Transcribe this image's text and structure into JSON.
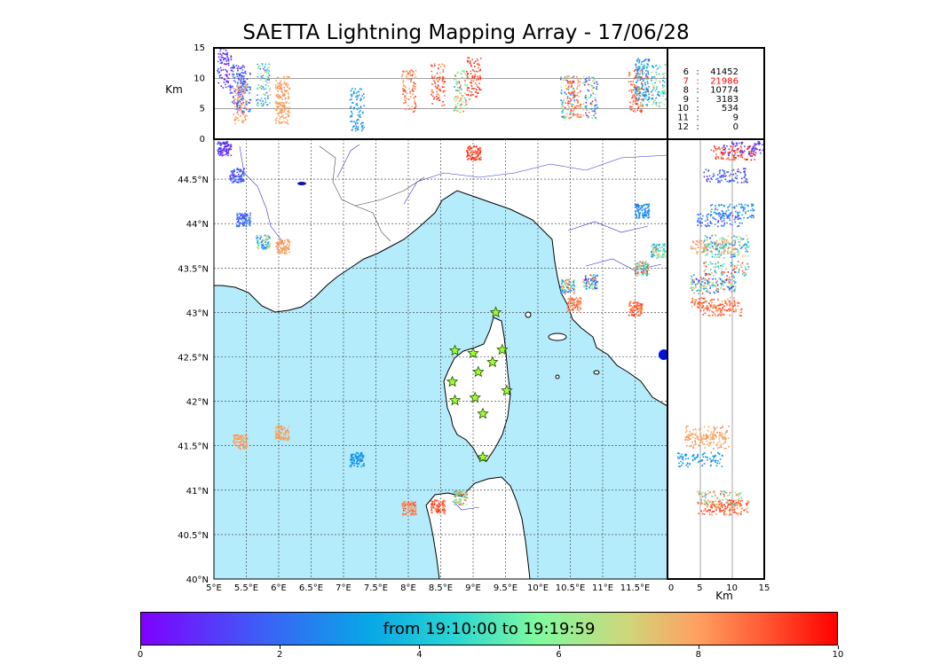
{
  "title": "SAETTA Lightning Mapping Array - 17/06/28",
  "map": {
    "lon_range": [
      5,
      12.0
    ],
    "lat_range": [
      40,
      44.95
    ],
    "lon_ticks": [
      "5°E",
      "5.5°E",
      "6°E",
      "6.5°E",
      "7°E",
      "7.5°E",
      "8°E",
      "8.5°E",
      "9°E",
      "9.5°E",
      "10°E",
      "10.5°E",
      "11°E",
      "11.5°E"
    ],
    "lat_ticks": [
      "40°N",
      "40.5°N",
      "41°N",
      "41.5°N",
      "42°N",
      "42.5°N",
      "43°N",
      "43.5°N",
      "44°N",
      "44.5°N"
    ],
    "sea_color": "#b4ecfc",
    "land_color": "#ffffff",
    "stations": [
      {
        "lon": 9.35,
        "lat": 43.0
      },
      {
        "lon": 8.72,
        "lat": 42.57
      },
      {
        "lon": 9.0,
        "lat": 42.54
      },
      {
        "lon": 9.45,
        "lat": 42.58
      },
      {
        "lon": 9.3,
        "lat": 42.44
      },
      {
        "lon": 9.08,
        "lat": 42.33
      },
      {
        "lon": 8.68,
        "lat": 42.22
      },
      {
        "lon": 9.52,
        "lat": 42.12
      },
      {
        "lon": 8.72,
        "lat": 42.01
      },
      {
        "lon": 9.03,
        "lat": 42.04
      },
      {
        "lon": 9.15,
        "lat": 41.86
      },
      {
        "lon": 9.15,
        "lat": 41.37
      }
    ]
  },
  "altitude_panel": {
    "ylabel": "Km",
    "yticks": [
      "0",
      "5",
      "10",
      "15"
    ],
    "y_range": [
      0,
      15
    ]
  },
  "side_panel": {
    "xlabel": "Km",
    "xticks": [
      "0",
      "5",
      "10",
      "15"
    ],
    "x_range": [
      0,
      15
    ]
  },
  "stats": [
    {
      "stations": "6",
      "sep": ":",
      "count": "41452",
      "color": "#000000"
    },
    {
      "stations": "7",
      "sep": ":",
      "count": "21986",
      "color": "#ff0000"
    },
    {
      "stations": "8",
      "sep": ":",
      "count": "10774",
      "color": "#000000"
    },
    {
      "stations": "9",
      "sep": ":",
      "count": "3183",
      "color": "#000000"
    },
    {
      "stations": "10",
      "sep": ":",
      "count": "534",
      "color": "#000000"
    },
    {
      "stations": "11",
      "sep": ":",
      "count": "9",
      "color": "#000000"
    },
    {
      "stations": "12",
      "sep": ":",
      "count": "0",
      "color": "#000000"
    }
  ],
  "colorbar": {
    "label": "from 19:10:00 to 19:19:59",
    "ticks": [
      "0",
      "2",
      "4",
      "6",
      "8",
      "10"
    ],
    "range": [
      0,
      10
    ]
  },
  "clusters": [
    {
      "lon": 5.15,
      "lat": 44.85,
      "alt": 12,
      "tmin": 0.0,
      "tmax": 1.8
    },
    {
      "lon": 5.35,
      "lat": 44.55,
      "alt": 9,
      "tmin": 0.5,
      "tmax": 2.5
    },
    {
      "lon": 5.45,
      "lat": 44.05,
      "alt": 8,
      "tmin": 0.8,
      "tmax": 3.0
    },
    {
      "lon": 5.75,
      "lat": 43.8,
      "alt": 9,
      "tmin": 1.5,
      "tmax": 8.0
    },
    {
      "lon": 6.05,
      "lat": 43.75,
      "alt": 7,
      "tmin": 7.5,
      "tmax": 8.5
    },
    {
      "lon": 7.2,
      "lat": 41.35,
      "alt": 5,
      "tmin": 2.2,
      "tmax": 3.5
    },
    {
      "lon": 8.0,
      "lat": 40.8,
      "alt": 8,
      "tmin": 7.5,
      "tmax": 9.5
    },
    {
      "lon": 8.45,
      "lat": 40.82,
      "alt": 9,
      "tmin": 7.8,
      "tmax": 9.8
    },
    {
      "lon": 8.8,
      "lat": 40.92,
      "alt": 8,
      "tmin": 4.0,
      "tmax": 9.5
    },
    {
      "lon": 9.0,
      "lat": 44.8,
      "alt": 10,
      "tmin": 8.5,
      "tmax": 9.8
    },
    {
      "lon": 10.45,
      "lat": 43.3,
      "alt": 7,
      "tmin": 1.0,
      "tmax": 9.5
    },
    {
      "lon": 10.8,
      "lat": 43.35,
      "alt": 7,
      "tmin": 0.5,
      "tmax": 9.8
    },
    {
      "lon": 10.55,
      "lat": 43.1,
      "alt": 7,
      "tmin": 7.5,
      "tmax": 9.5
    },
    {
      "lon": 11.5,
      "lat": 43.05,
      "alt": 8,
      "tmin": 8.0,
      "tmax": 9.5
    },
    {
      "lon": 11.6,
      "lat": 43.5,
      "alt": 9,
      "tmin": 3.0,
      "tmax": 9.9
    },
    {
      "lon": 11.85,
      "lat": 43.7,
      "alt": 9,
      "tmin": 2.0,
      "tmax": 8.0
    },
    {
      "lon": 11.6,
      "lat": 44.15,
      "alt": 10,
      "tmin": 2.0,
      "tmax": 3.5
    },
    {
      "lon": 5.4,
      "lat": 41.55,
      "alt": 6,
      "tmin": 7.5,
      "tmax": 8.5
    },
    {
      "lon": 6.05,
      "lat": 41.65,
      "alt": 6,
      "tmin": 7.5,
      "tmax": 8.5
    }
  ]
}
